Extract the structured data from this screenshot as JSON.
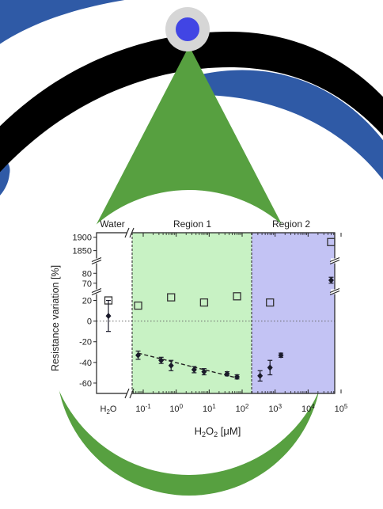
{
  "colors": {
    "arc_blue": "#2f5aa6",
    "arc_black": "#000000",
    "pin_green": "#57a040",
    "pin_green_dark": "#3c7f2c",
    "knob_outer": "#d6d6d6",
    "knob_inner": "#4145e4",
    "region1_fill": "#c8f2c4",
    "region2_fill": "#c3c3f4",
    "hollow_marker": "#333333",
    "solid_marker": "#1a1a2a"
  },
  "chart_data": {
    "type": "scatter",
    "title": "",
    "xlabel": "H₂O₂ [μM]",
    "ylabel": "Resistance variation [%]",
    "x_scale": "log",
    "xlim": [
      0.03,
      100000
    ],
    "x_ticks": [
      "10⁻¹",
      "10⁰",
      "10¹",
      "10²",
      "10³",
      "10⁴",
      "10⁵"
    ],
    "x_tick_values": [
      0.1,
      1,
      10,
      100,
      1000,
      10000,
      100000
    ],
    "water_tick_label": "H₂O",
    "y_broken": true,
    "y_segments": [
      {
        "range": [
          -70,
          25
        ],
        "ticks": [
          "20",
          "0",
          "-20",
          "-40",
          "-60"
        ],
        "tick_values": [
          20,
          0,
          -20,
          -40,
          -60
        ]
      },
      {
        "range": [
          65,
          85
        ],
        "ticks": [
          "80",
          "70"
        ],
        "tick_values": [
          80,
          70
        ]
      },
      {
        "range": [
          1840,
          1905
        ],
        "ticks": [
          "1900",
          "1850"
        ],
        "tick_values": [
          1900,
          1850
        ]
      }
    ],
    "regions": [
      {
        "label": "Water"
      },
      {
        "label": "Region 1",
        "x_range": [
          0.03,
          200
        ]
      },
      {
        "label": "Region 2",
        "x_range": [
          200,
          100000
        ]
      }
    ],
    "reference_line_y": 0,
    "water_point": {
      "hollow": 20,
      "solid": 5,
      "solid_err": 15
    },
    "series": [
      {
        "marker": "hollow-square",
        "points": [
          {
            "x": 0.07,
            "y": 15
          },
          {
            "x": 0.7,
            "y": 23
          },
          {
            "x": 7,
            "y": 18
          },
          {
            "x": 70,
            "y": 24
          },
          {
            "x": 700,
            "y": 18
          },
          {
            "x": 50000,
            "y": 1882
          }
        ]
      },
      {
        "marker": "filled-diamond",
        "points": [
          {
            "x": 0.07,
            "y": -33,
            "err": 4
          },
          {
            "x": 0.35,
            "y": -38,
            "err": 3
          },
          {
            "x": 0.7,
            "y": -43,
            "err": 5
          },
          {
            "x": 3.5,
            "y": -47,
            "err": 3
          },
          {
            "x": 7,
            "y": -49,
            "err": 3
          },
          {
            "x": 35,
            "y": -51,
            "err": 2
          },
          {
            "x": 70,
            "y": -54,
            "err": 2
          },
          {
            "x": 350,
            "y": -53,
            "err": 5
          },
          {
            "x": 700,
            "y": -45,
            "err": 7
          },
          {
            "x": 1500,
            "y": -33,
            "err": 2
          },
          {
            "x": 50000,
            "y": 73,
            "err": 3
          }
        ]
      }
    ],
    "trend_line": {
      "style": "dashed",
      "from": {
        "x": 0.07,
        "y": -31
      },
      "to": {
        "x": 70,
        "y": -55
      }
    }
  }
}
